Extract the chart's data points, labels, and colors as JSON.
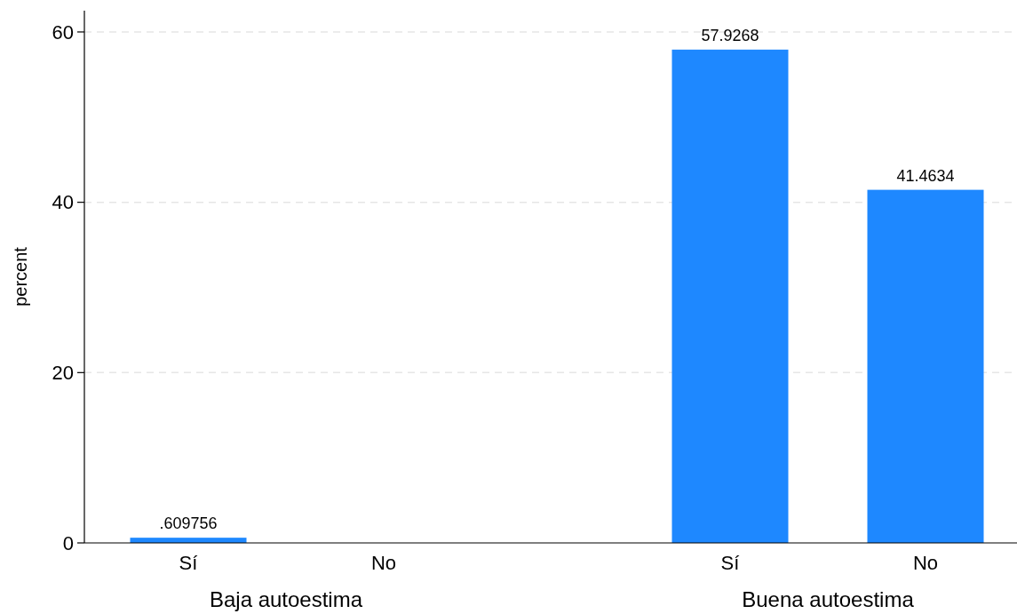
{
  "chart_data": {
    "type": "bar",
    "ylabel": "percent",
    "categories": [
      "Sí",
      "No",
      "Sí",
      "No"
    ],
    "values": [
      0.609756,
      0,
      57.9268,
      41.4634
    ],
    "value_labels": [
      ".609756",
      null,
      "57.9268",
      "41.4634"
    ],
    "color": "#1e88ff",
    "ylim": [
      0,
      62.5
    ],
    "yticks": [
      0,
      20,
      40,
      60
    ],
    "grid": "y",
    "annotations": [
      "Baja autoestima",
      "Buena autoestima"
    ]
  }
}
